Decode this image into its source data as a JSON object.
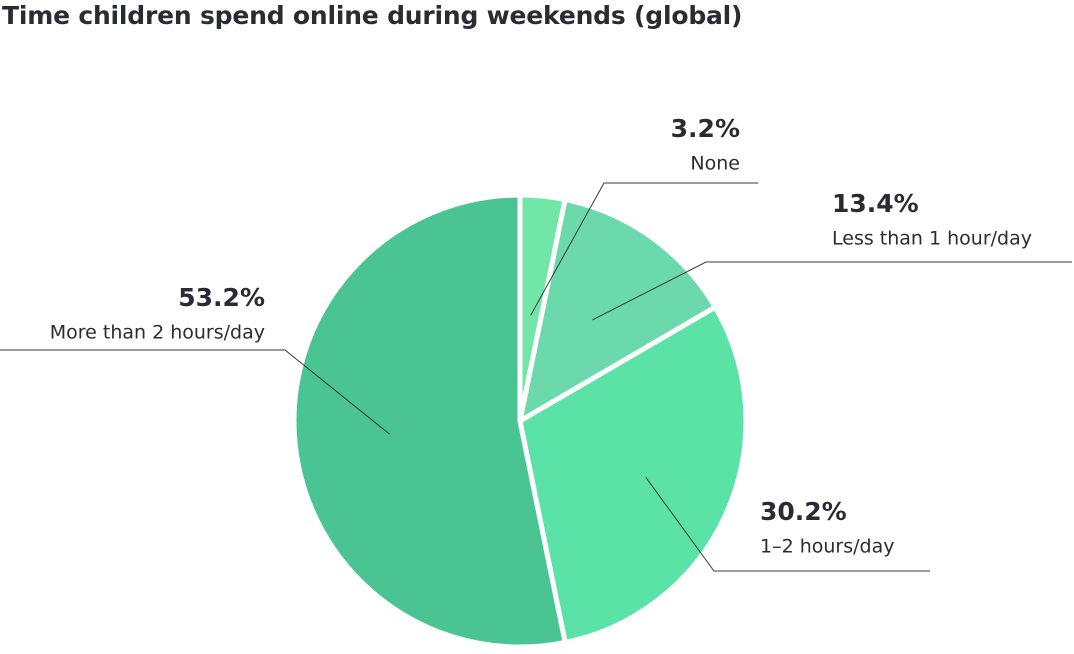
{
  "chart_data": {
    "type": "pie",
    "title": "Time children spend online during weekends (global)",
    "categories": [
      "None",
      "Less than 1 hour/day",
      "1–2 hours/day",
      "More than 2 hours/day"
    ],
    "values": [
      3.2,
      13.4,
      30.2,
      53.2
    ],
    "value_labels": [
      "3.2%",
      "13.4%",
      "30.2%",
      "53.2%"
    ],
    "colors": [
      "#71e6a6",
      "#6bd9ac",
      "#5be3a7",
      "#4bc494"
    ],
    "start": "top",
    "direction": "clockwise",
    "legend": "none"
  }
}
